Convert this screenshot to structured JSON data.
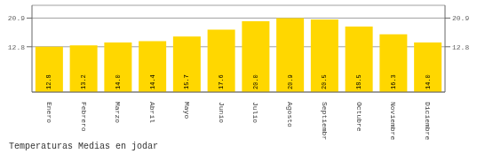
{
  "chart_data": {
    "type": "bar",
    "title": "Temperaturas Medias en jodar",
    "categories": [
      "Enero",
      "Febrero",
      "Marzo",
      "Abril",
      "Mayo",
      "Junio",
      "Julio",
      "Agosto",
      "Septiembre",
      "Octubre",
      "Noviembre",
      "Diciembre"
    ],
    "values": [
      12.8,
      13.2,
      14.0,
      14.4,
      15.7,
      17.6,
      20.0,
      20.9,
      20.5,
      18.5,
      16.3,
      14.0
    ],
    "value_labels": [
      "12.8",
      "13.2",
      "14.0",
      "14.4",
      "15.7",
      "17.6",
      "20.0",
      "20.9",
      "20.5",
      "18.5",
      "16.3",
      "14.0"
    ],
    "data_labels": true,
    "color": "#FFD700",
    "ylim": [
      0,
      24.5
    ],
    "yticks": [
      12.8,
      20.9
    ],
    "grid": true
  }
}
